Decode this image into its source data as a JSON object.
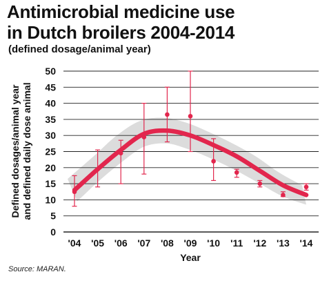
{
  "title_line1": "Antimicrobial medicine use",
  "title_line2": "in Dutch broilers 2004-2014",
  "subtitle": "(defined dosage/animal year)",
  "source": "Source: MARAN.",
  "colors": {
    "trend_line": "#e2264d",
    "points": "#e2264d",
    "band": "#dcdcdc",
    "grid": "#222222"
  },
  "chart_data": {
    "type": "scatter",
    "title": "Antimicrobial medicine use in Dutch broilers 2004-2014",
    "subtitle": "(defined dosage/animal year)",
    "xlabel": "Year",
    "ylabel_line1": "Defined dosages/animal year",
    "ylabel_line2": "and defined daily dose animal",
    "categories": [
      "'04",
      "'05",
      "'06",
      "'07",
      "'08",
      "'09",
      "'10",
      "'11",
      "'12",
      "'13",
      "'14"
    ],
    "y_ticks": [
      "0",
      "5",
      "10",
      "15",
      "20",
      "25",
      "30",
      "35",
      "40",
      "45",
      "50"
    ],
    "ylim": [
      0,
      50
    ],
    "grid": true,
    "observed": {
      "values": [
        12.5,
        19.5,
        24.5,
        29.5,
        36.5,
        36.0,
        22.0,
        18.5,
        15.0,
        11.5,
        14.0
      ],
      "lower": [
        8.0,
        14.0,
        15.0,
        18.0,
        28.0,
        25.0,
        16.0,
        17.0,
        14.0,
        11.0,
        13.0
      ],
      "upper": [
        17.5,
        25.5,
        28.5,
        40.0,
        45.0,
        50.0,
        29.0,
        19.5,
        16.0,
        12.5,
        15.0
      ]
    },
    "trend": {
      "values": [
        13.0,
        19.5,
        25.5,
        30.5,
        31.5,
        30.0,
        27.0,
        23.5,
        19.0,
        14.5,
        11.5
      ],
      "band_lower": [
        9.5,
        15.5,
        21.5,
        26.5,
        27.5,
        25.5,
        22.5,
        19.0,
        15.0,
        11.0,
        8.5
      ],
      "band_upper": [
        16.5,
        23.5,
        30.0,
        34.5,
        35.5,
        34.0,
        31.0,
        27.5,
        23.5,
        18.5,
        14.5
      ]
    }
  }
}
